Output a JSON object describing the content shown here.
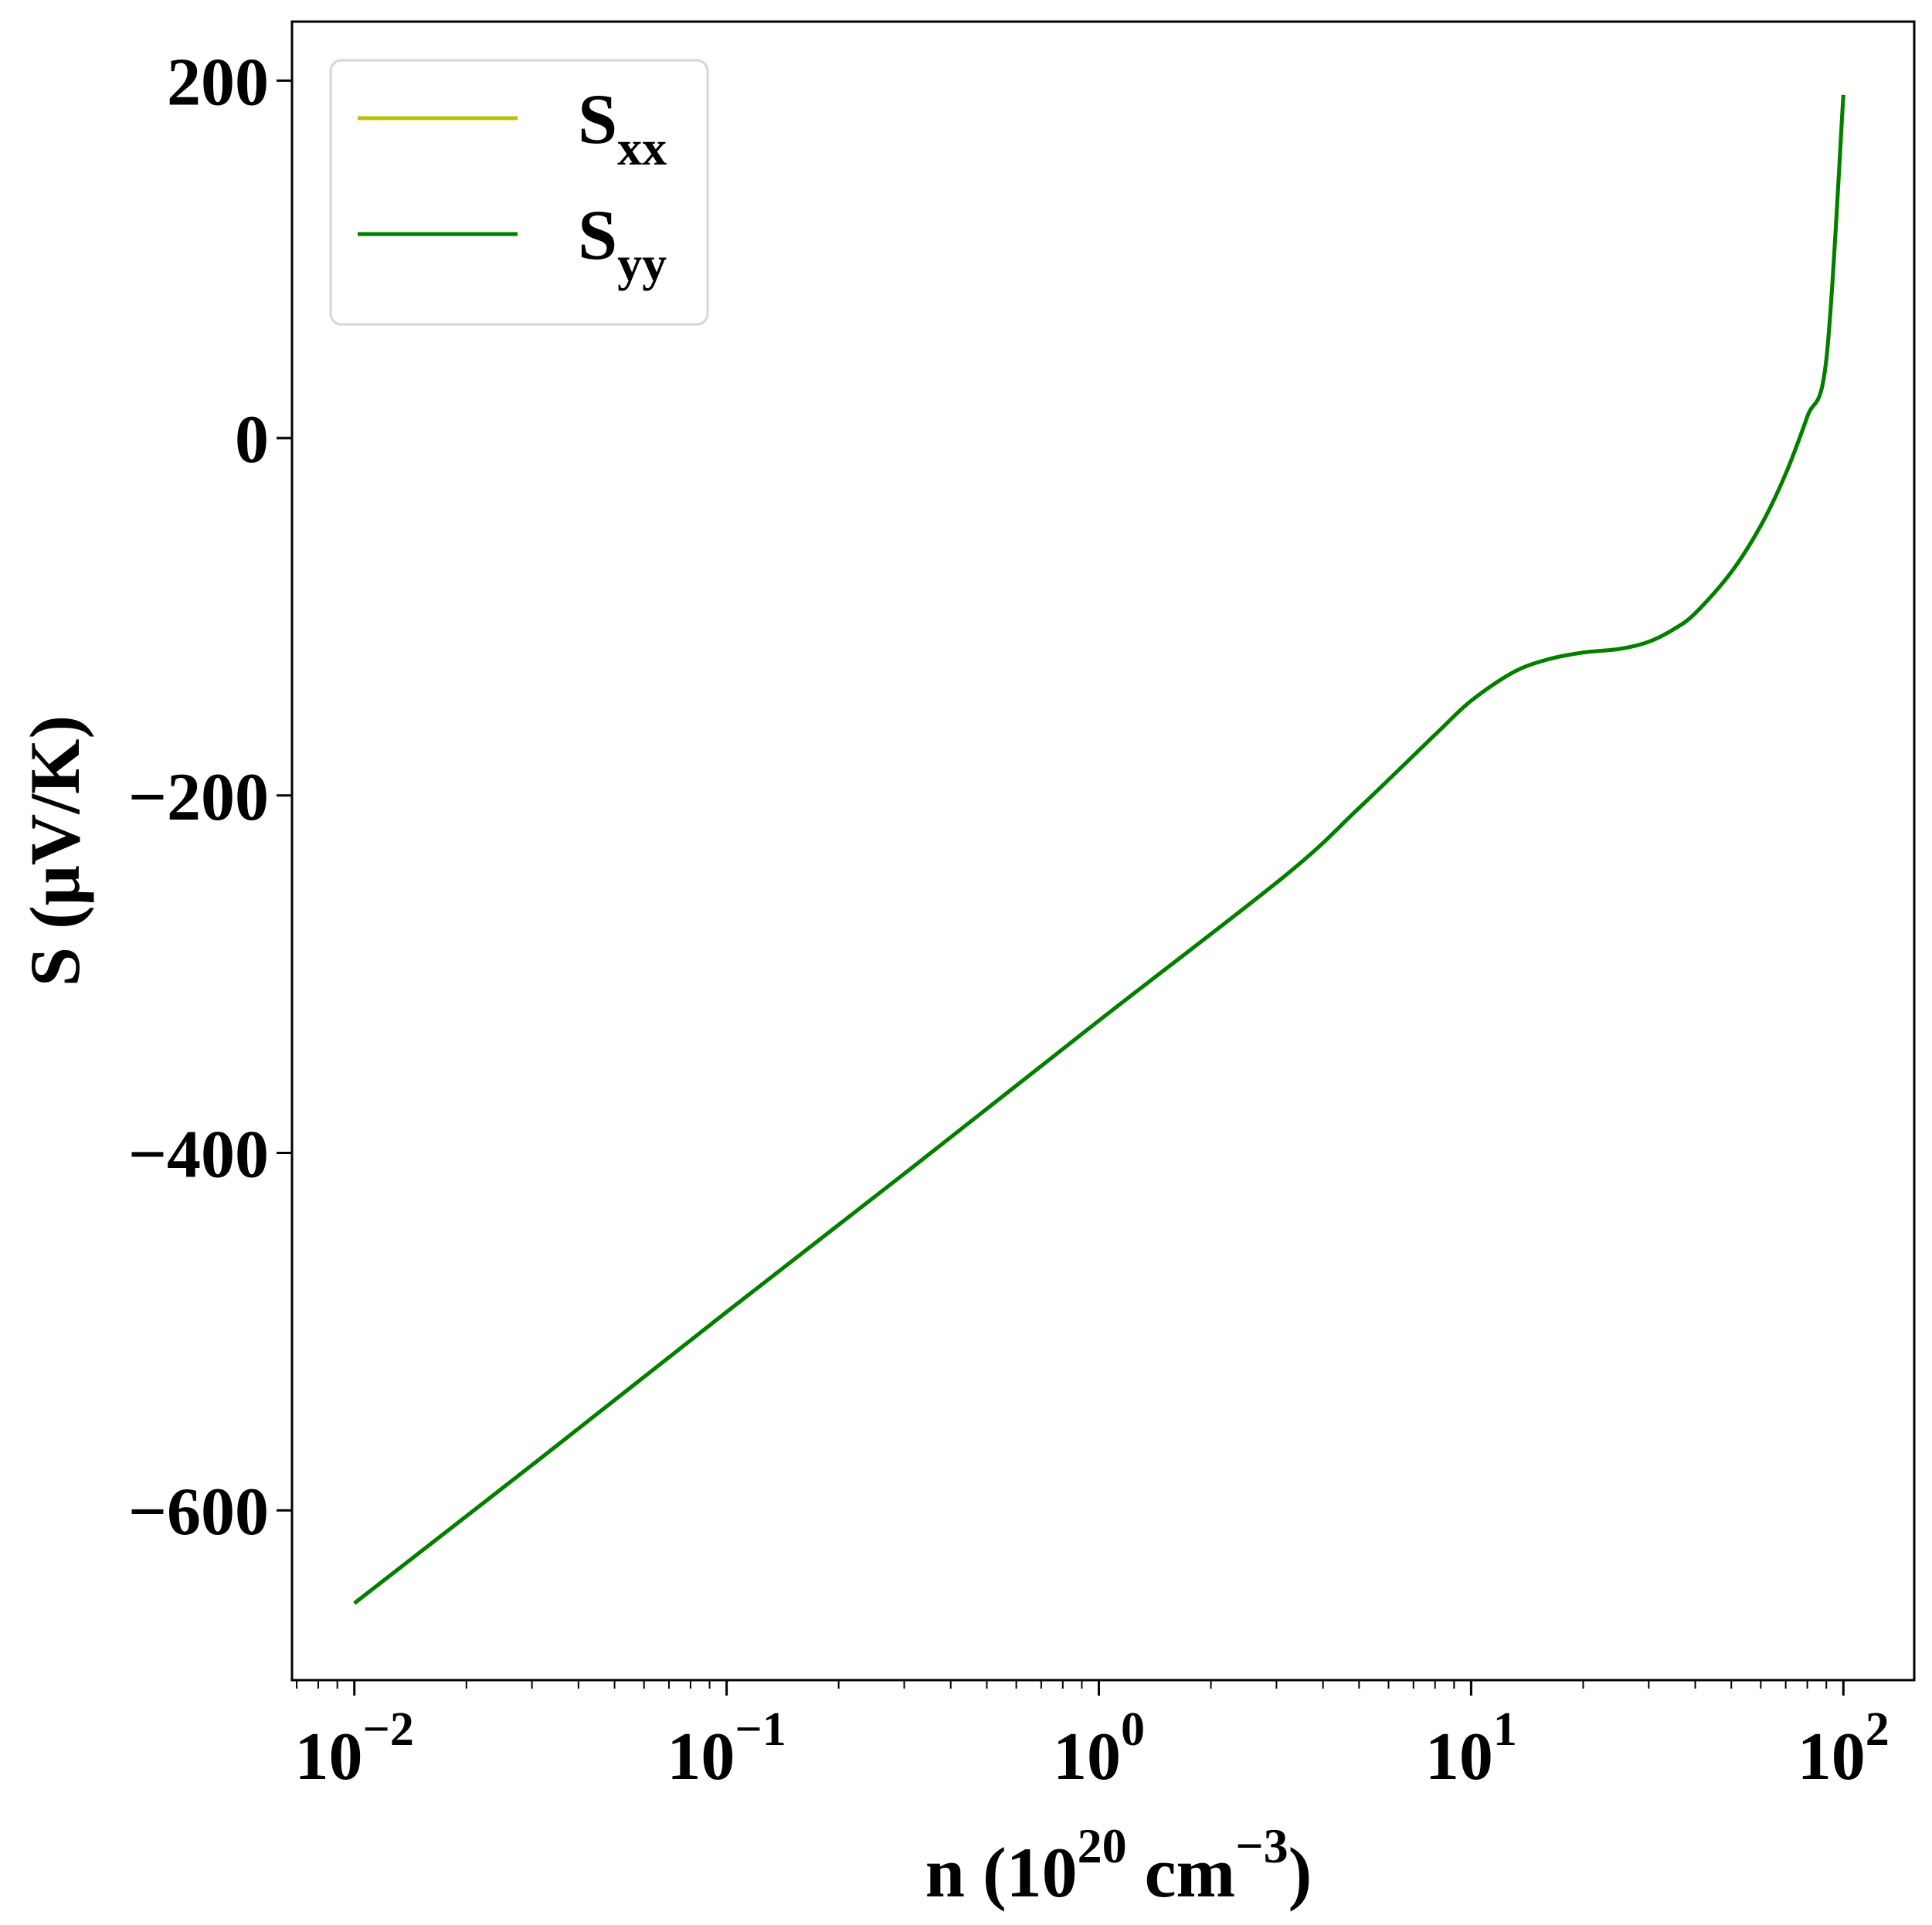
{
  "chart_data": {
    "type": "line",
    "title": "",
    "xlabel": {
      "base": "n (10",
      "sup1": "20",
      "mid": " cm",
      "sup2": "−3",
      "end": ")"
    },
    "ylabel": "S (μV/K)",
    "x_scale": "log",
    "xlim": [
      0.0068,
      155
    ],
    "ylim": [
      -695,
      233
    ],
    "grid": false,
    "legend_position": "top-left",
    "x_ticks": [
      {
        "value": 0.01,
        "base": "10",
        "exp": "−2"
      },
      {
        "value": 0.1,
        "base": "10",
        "exp": "−1"
      },
      {
        "value": 1,
        "base": "10",
        "exp": "0"
      },
      {
        "value": 10,
        "base": "10",
        "exp": "1"
      },
      {
        "value": 100,
        "base": "10",
        "exp": "2"
      }
    ],
    "y_ticks": [
      {
        "value": 200,
        "label": "200"
      },
      {
        "value": 0,
        "label": "0"
      },
      {
        "value": -200,
        "label": "−200"
      },
      {
        "value": -400,
        "label": "−400"
      },
      {
        "value": -600,
        "label": "−600"
      }
    ],
    "series": [
      {
        "name": "S_xx",
        "legend_main": "S",
        "legend_sub": "xx",
        "color": "#bfbf00",
        "x": [
          0.01,
          0.0316,
          0.1,
          0.316,
          1,
          3.16,
          5,
          8,
          10,
          13,
          16,
          20,
          25,
          30,
          35,
          40,
          50,
          60,
          70,
          80,
          90,
          100
        ],
        "y": [
          -652,
          -571,
          -489,
          -408,
          -326,
          -245,
          -207,
          -166,
          -147,
          -131,
          -124,
          -120,
          -118,
          -114,
          -107,
          -98,
          -75,
          -49,
          -20,
          12,
          44,
          192
        ]
      },
      {
        "name": "S_yy",
        "legend_main": "S",
        "legend_sub": "yy",
        "color": "#007f00",
        "x": [
          0.01,
          0.0316,
          0.1,
          0.316,
          1,
          3.16,
          5,
          8,
          10,
          13,
          16,
          20,
          25,
          30,
          35,
          40,
          50,
          60,
          70,
          80,
          90,
          100
        ],
        "y": [
          -652,
          -571,
          -489,
          -408,
          -326,
          -245,
          -207,
          -166,
          -147,
          -131,
          -124,
          -120,
          -118,
          -114,
          -107,
          -98,
          -75,
          -49,
          -20,
          12,
          44,
          192
        ]
      }
    ]
  }
}
